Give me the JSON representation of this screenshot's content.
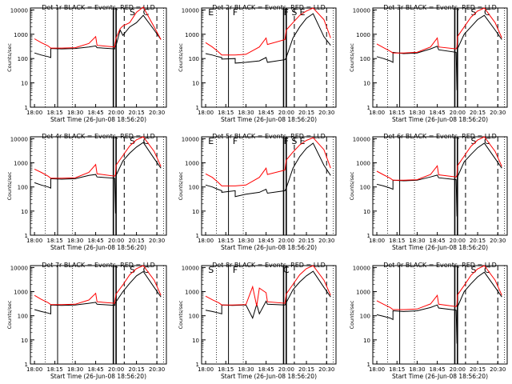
{
  "figure": {
    "common_xlabel": "Start Time (26-Jun-08 18:56:20)",
    "ylabel": "Counts/sec",
    "x_ticks": [
      "18:00",
      "18:15",
      "18:30",
      "18:45",
      "20:00",
      "20:15",
      "20:30"
    ],
    "y_ticks": [
      "1",
      "10",
      "100",
      "1000",
      "10000"
    ],
    "colors": {
      "events": "#000000",
      "lld": "#ff0000",
      "axes": "#000000",
      "background": "#ffffff"
    }
  },
  "chart_data": [
    {
      "type": "line",
      "title": "Det 1r BLACK = Events, RED = LLD",
      "markers": [
        "S",
        "C"
      ],
      "x": [
        "18:00",
        "18:05",
        "18:10",
        "18:12",
        "18:12",
        "18:20",
        "18:30",
        "18:40",
        "18:45",
        "18:50",
        "19:55",
        "19:55",
        "20:00",
        "20:03",
        "20:05",
        "20:10",
        "20:15",
        "20:20",
        "20:28",
        "20:33"
      ],
      "series": [
        {
          "name": "Events",
          "values": [
            170,
            140,
            120,
            110,
            260,
            250,
            260,
            300,
            330,
            280,
            250,
            300,
            350,
            1500,
            900,
            2000,
            3000,
            6000,
            1500,
            600
          ]
        },
        {
          "name": "LLD",
          "values": [
            650,
            450,
            330,
            270,
            270,
            270,
            280,
            420,
            800,
            350,
            300,
            350,
            700,
            1700,
            2200,
            3000,
            8000,
            13000,
            2000,
            600
          ]
        }
      ],
      "ylim": [
        1,
        12000
      ],
      "yscale": "log"
    },
    {
      "type": "line",
      "title": "Det 2r BLACK = Events, RED = LLD",
      "markers": [
        "E",
        "F",
        "F",
        "S",
        "E"
      ],
      "x": [
        "18:00",
        "18:05",
        "18:09",
        "18:12",
        "18:12",
        "18:22",
        "18:22",
        "18:30",
        "18:40",
        "18:45",
        "18:50",
        "19:55",
        "20:00",
        "20:05",
        "20:10",
        "20:15",
        "20:20",
        "20:28",
        "20:33"
      ],
      "series": [
        {
          "name": "Events",
          "values": [
            160,
            140,
            120,
            110,
            95,
            100,
            65,
            70,
            80,
            110,
            70,
            90,
            110,
            700,
            2000,
            4500,
            7000,
            800,
            350
          ]
        },
        {
          "name": "LLD",
          "values": [
            450,
            300,
            200,
            140,
            140,
            140,
            140,
            150,
            300,
            700,
            380,
            600,
            1500,
            3000,
            6000,
            9000,
            12000,
            4000,
            700
          ]
        }
      ],
      "ylim": [
        1,
        12000
      ],
      "yscale": "log"
    },
    {
      "type": "line",
      "title": "Det 3r BLACK = Events, RED = LLD",
      "markers": [
        "S",
        "C"
      ],
      "x": [
        "18:00",
        "18:05",
        "18:10",
        "18:12",
        "18:12",
        "18:20",
        "18:30",
        "18:40",
        "18:45",
        "18:50",
        "19:55",
        "19:58",
        "20:00",
        "20:05",
        "20:10",
        "20:15",
        "20:20",
        "20:28",
        "20:33"
      ],
      "series": [
        {
          "name": "Events",
          "values": [
            120,
            100,
            80,
            70,
            180,
            160,
            170,
            250,
            320,
            230,
            180,
            5,
            250,
            1000,
            2000,
            4000,
            6000,
            1500,
            600
          ]
        },
        {
          "name": "LLD",
          "values": [
            400,
            280,
            200,
            170,
            170,
            170,
            180,
            300,
            700,
            300,
            250,
            300,
            800,
            2000,
            5000,
            9000,
            12000,
            3000,
            700
          ]
        }
      ],
      "ylim": [
        1,
        12000
      ],
      "yscale": "log"
    },
    {
      "type": "line",
      "title": "Det 4r BLACK = Events, RED = LLD",
      "markers": [
        "S",
        "C"
      ],
      "x": [
        "18:00",
        "18:05",
        "18:10",
        "18:12",
        "18:12",
        "18:20",
        "18:30",
        "18:40",
        "18:45",
        "18:50",
        "19:55",
        "19:58",
        "20:00",
        "20:05",
        "20:10",
        "20:15",
        "20:20",
        "20:28",
        "20:33"
      ],
      "series": [
        {
          "name": "Events",
          "values": [
            150,
            120,
            100,
            90,
            220,
            210,
            220,
            300,
            330,
            260,
            230,
            8,
            300,
            1200,
            2500,
            4500,
            7000,
            1500,
            600
          ]
        },
        {
          "name": "LLD",
          "values": [
            550,
            400,
            280,
            230,
            230,
            230,
            240,
            400,
            850,
            350,
            280,
            330,
            800,
            2000,
            5000,
            9000,
            12000,
            3000,
            700
          ]
        }
      ],
      "ylim": [
        1,
        12000
      ],
      "yscale": "log"
    },
    {
      "type": "line",
      "title": "Det 5r BLACK = Events, RED = LLD",
      "markers": [
        "E",
        "F",
        "F",
        "S",
        "E"
      ],
      "x": [
        "18:00",
        "18:05",
        "18:09",
        "18:12",
        "18:12",
        "18:22",
        "18:22",
        "18:30",
        "18:40",
        "18:45",
        "18:50",
        "19:55",
        "20:00",
        "20:05",
        "20:10",
        "20:15",
        "20:20",
        "20:28",
        "20:33"
      ],
      "series": [
        {
          "name": "Events",
          "values": [
            120,
            100,
            80,
            70,
            60,
            70,
            40,
            50,
            60,
            80,
            55,
            70,
            90,
            600,
            1800,
            4000,
            6500,
            800,
            300
          ]
        },
        {
          "name": "LLD",
          "values": [
            350,
            250,
            160,
            110,
            110,
            110,
            110,
            120,
            250,
            600,
            330,
            500,
            1300,
            2800,
            5500,
            8500,
            11000,
            3500,
            600
          ]
        }
      ],
      "ylim": [
        1,
        12000
      ],
      "yscale": "log"
    },
    {
      "type": "line",
      "title": "Det 6r BLACK = Events, RED = LLD",
      "markers": [
        "S",
        "C"
      ],
      "x": [
        "18:00",
        "18:05",
        "18:10",
        "18:12",
        "18:12",
        "18:20",
        "18:30",
        "18:40",
        "18:45",
        "18:50",
        "19:55",
        "19:58",
        "20:00",
        "20:05",
        "20:10",
        "20:15",
        "20:20",
        "20:28",
        "20:33"
      ],
      "series": [
        {
          "name": "Events",
          "values": [
            130,
            110,
            90,
            80,
            190,
            180,
            190,
            260,
            310,
            240,
            200,
            6,
            260,
            1100,
            2200,
            4200,
            6500,
            1500,
            600
          ]
        },
        {
          "name": "LLD",
          "values": [
            450,
            320,
            230,
            190,
            190,
            190,
            200,
            330,
            750,
            320,
            260,
            310,
            750,
            1900,
            4800,
            8800,
            12000,
            3000,
            700
          ]
        }
      ],
      "ylim": [
        1,
        12000
      ],
      "yscale": "log"
    },
    {
      "type": "line",
      "title": "Det 7r BLACK = Events, RED = LLD",
      "markers": [
        "S",
        "C"
      ],
      "x": [
        "18:00",
        "18:05",
        "18:10",
        "18:12",
        "18:12",
        "18:20",
        "18:30",
        "18:40",
        "18:45",
        "18:50",
        "19:55",
        "19:55",
        "20:00",
        "20:05",
        "20:10",
        "20:15",
        "20:20",
        "20:28",
        "20:33"
      ],
      "series": [
        {
          "name": "Events",
          "values": [
            180,
            150,
            130,
            120,
            280,
            270,
            280,
            330,
            360,
            300,
            270,
            320,
            380,
            1000,
            2200,
            4500,
            6800,
            1500,
            600
          ]
        },
        {
          "name": "LLD",
          "values": [
            700,
            480,
            350,
            290,
            290,
            290,
            300,
            450,
            850,
            380,
            330,
            380,
            800,
            1900,
            5000,
            9000,
            12000,
            3000,
            700
          ]
        }
      ],
      "ylim": [
        1,
        12000
      ],
      "yscale": "log"
    },
    {
      "type": "line",
      "title": "Det 8r BLACK = Events, RED = LLD",
      "markers": [
        "S",
        "F",
        "C"
      ],
      "x": [
        "18:00",
        "18:05",
        "18:10",
        "18:12",
        "18:12",
        "18:20",
        "18:30",
        "18:35",
        "18:38",
        "18:40",
        "18:45",
        "18:50",
        "19:55",
        "20:00",
        "20:05",
        "20:10",
        "20:15",
        "20:20",
        "20:28",
        "20:33"
      ],
      "series": [
        {
          "name": "Events",
          "values": [
            170,
            150,
            130,
            120,
            280,
            270,
            280,
            80,
            300,
            120,
            400,
            300,
            280,
            350,
            1200,
            2500,
            4500,
            7000,
            1500,
            600
          ]
        },
        {
          "name": "LLD",
          "values": [
            650,
            460,
            340,
            280,
            280,
            280,
            290,
            1600,
            250,
            1400,
            900,
            380,
            330,
            800,
            2000,
            5000,
            9000,
            12000,
            3000,
            700
          ]
        }
      ],
      "ylim": [
        1,
        12000
      ],
      "yscale": "log"
    },
    {
      "type": "line",
      "title": "Det 9r BLACK = Events, RED = LLD",
      "markers": [
        "S",
        "C"
      ],
      "x": [
        "18:00",
        "18:05",
        "18:10",
        "18:12",
        "18:12",
        "18:20",
        "18:30",
        "18:40",
        "18:45",
        "18:50",
        "19:55",
        "19:58",
        "20:00",
        "20:05",
        "20:10",
        "20:15",
        "20:20",
        "20:28",
        "20:33"
      ],
      "series": [
        {
          "name": "Events",
          "values": [
            110,
            95,
            80,
            70,
            160,
            150,
            160,
            220,
            280,
            210,
            170,
            7,
            230,
            1000,
            2100,
            4100,
            6400,
            1500,
            600
          ]
        },
        {
          "name": "LLD",
          "values": [
            420,
            300,
            220,
            180,
            180,
            180,
            190,
            310,
            700,
            300,
            240,
            290,
            720,
            1800,
            4700,
            8700,
            12000,
            3000,
            700
          ]
        }
      ],
      "ylim": [
        1,
        12000
      ],
      "yscale": "log"
    }
  ]
}
